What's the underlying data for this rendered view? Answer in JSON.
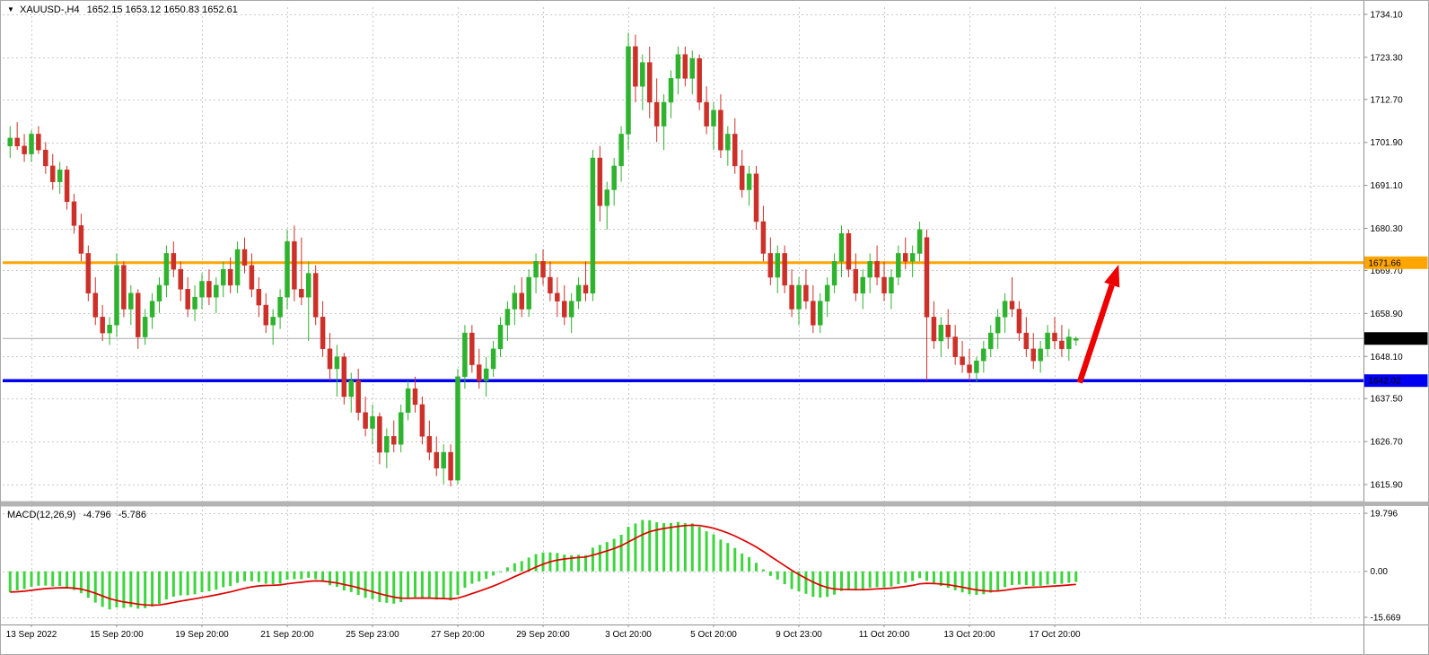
{
  "header": {
    "marker": "▼",
    "title": "XAUUSD-,H4",
    "ohlc": "1652.15 1653.12 1650.83 1652.61"
  },
  "macd_panel": {
    "label": "MACD(12,26,9)",
    "value_main": "-4.796",
    "value_signal": "-5.786"
  },
  "colors": {
    "bull": "#2eb32e",
    "bear": "#cc3029",
    "macd_bar": "#3cd63c",
    "macd_signal": "#e00000",
    "resistance": "#ffa500",
    "support": "#0000f0",
    "current_line": "#a8a8a8",
    "grid": "#c8c8c8",
    "axis_line": "#8f8f8f",
    "splitter": "#b4b4b4",
    "splitter_edge": "#8c8c8c",
    "arrow": "#ee0000",
    "tag_current_bg": "#000000",
    "tag_current_fg": "#ffffff",
    "tag_resistance_fg": "#000000",
    "tag_support_fg": "#ffffff",
    "window_border": "#a8a8a8",
    "background": "#ffffff"
  },
  "chart_data": {
    "type": "candlestick",
    "symbol": "XAUUSD-",
    "timeframe": "H4",
    "title": "XAUUSD-,H4 1652.15 1653.12 1650.83 1652.61",
    "last_ohlc": {
      "open": 1652.15,
      "high": 1653.12,
      "low": 1650.83,
      "close": 1652.61
    },
    "price_axis_ticks": [
      {
        "text": "1734.10",
        "value": 1734.1
      },
      {
        "text": "1723.30",
        "value": 1723.3
      },
      {
        "text": "1712.70",
        "value": 1712.7
      },
      {
        "text": "1701.90",
        "value": 1701.9
      },
      {
        "text": "1691.10",
        "value": 1691.1
      },
      {
        "text": "1680.30",
        "value": 1680.3
      },
      {
        "text": "1669.70",
        "value": 1669.7
      },
      {
        "text": "1658.90",
        "value": 1658.9
      },
      {
        "text": "1648.10",
        "value": 1648.1
      },
      {
        "text": "1637.50",
        "value": 1637.5
      },
      {
        "text": "1626.70",
        "value": 1626.7
      },
      {
        "text": "1615.90",
        "value": 1615.9
      }
    ],
    "time_axis_ticks": [
      {
        "text": "13 Sep 2022",
        "grid": 0
      },
      {
        "text": "15 Sep 20:00",
        "grid": 1
      },
      {
        "text": "19 Sep 20:00",
        "grid": 2
      },
      {
        "text": "21 Sep 20:00",
        "grid": 3
      },
      {
        "text": "25 Sep 23:00",
        "grid": 4
      },
      {
        "text": "27 Sep 20:00",
        "grid": 5
      },
      {
        "text": "29 Sep 20:00",
        "grid": 6
      },
      {
        "text": "3 Oct 20:00",
        "grid": 7
      },
      {
        "text": "5 Oct 20:00",
        "grid": 8
      },
      {
        "text": "9 Oct 23:00",
        "grid": 9
      },
      {
        "text": "11 Oct 20:00",
        "grid": 10
      },
      {
        "text": "13 Oct 20:00",
        "grid": 11
      },
      {
        "text": "17 Oct 20:00",
        "grid": 12
      }
    ],
    "grid_columns": 16,
    "candles_per_grid": 12,
    "levels": {
      "resistance": {
        "text": "1671.66",
        "value": 1671.66
      },
      "support": {
        "text": "1642.02",
        "value": 1642.02
      },
      "current": {
        "text": "1652.61",
        "value": 1652.61
      }
    },
    "candles": [
      [
        1701,
        1706,
        1698,
        1703
      ],
      [
        1703,
        1707,
        1700,
        1701
      ],
      [
        1701,
        1704,
        1697,
        1699
      ],
      [
        1699,
        1705,
        1697,
        1704
      ],
      [
        1704,
        1706,
        1699,
        1700
      ],
      [
        1700,
        1702,
        1694,
        1696
      ],
      [
        1696,
        1699,
        1690,
        1692
      ],
      [
        1692,
        1697,
        1689,
        1695
      ],
      [
        1695,
        1696,
        1685,
        1687
      ],
      [
        1687,
        1689,
        1679,
        1681
      ],
      [
        1681,
        1684,
        1672,
        1674
      ],
      [
        1674,
        1676,
        1662,
        1664
      ],
      [
        1664,
        1668,
        1656,
        1658
      ],
      [
        1658,
        1661,
        1652,
        1654
      ],
      [
        1654,
        1658,
        1651,
        1656
      ],
      [
        1656,
        1674,
        1653,
        1671
      ],
      [
        1671,
        1672,
        1658,
        1660
      ],
      [
        1660,
        1666,
        1656,
        1664
      ],
      [
        1664,
        1665,
        1650,
        1653
      ],
      [
        1653,
        1660,
        1651,
        1658
      ],
      [
        1658,
        1664,
        1655,
        1662
      ],
      [
        1662,
        1668,
        1659,
        1666
      ],
      [
        1666,
        1676,
        1663,
        1674
      ],
      [
        1674,
        1677,
        1668,
        1670
      ],
      [
        1670,
        1672,
        1662,
        1665
      ],
      [
        1665,
        1668,
        1658,
        1660
      ],
      [
        1660,
        1666,
        1657,
        1663
      ],
      [
        1663,
        1669,
        1660,
        1667
      ],
      [
        1667,
        1670,
        1661,
        1663
      ],
      [
        1663,
        1668,
        1659,
        1666
      ],
      [
        1666,
        1672,
        1663,
        1670
      ],
      [
        1670,
        1673,
        1664,
        1666
      ],
      [
        1666,
        1677,
        1664,
        1675
      ],
      [
        1675,
        1678,
        1669,
        1671
      ],
      [
        1671,
        1674,
        1663,
        1665
      ],
      [
        1665,
        1668,
        1658,
        1661
      ],
      [
        1661,
        1664,
        1654,
        1656
      ],
      [
        1656,
        1660,
        1651,
        1658
      ],
      [
        1658,
        1665,
        1655,
        1663
      ],
      [
        1663,
        1680,
        1660,
        1677
      ],
      [
        1677,
        1681,
        1662,
        1665
      ],
      [
        1665,
        1678,
        1661,
        1663
      ],
      [
        1663,
        1672,
        1652,
        1669
      ],
      [
        1669,
        1671,
        1656,
        1658
      ],
      [
        1658,
        1662,
        1648,
        1650
      ],
      [
        1650,
        1654,
        1642,
        1645
      ],
      [
        1645,
        1651,
        1638,
        1648
      ],
      [
        1648,
        1649,
        1636,
        1638
      ],
      [
        1638,
        1644,
        1634,
        1642
      ],
      [
        1642,
        1645,
        1632,
        1634
      ],
      [
        1634,
        1638,
        1628,
        1630
      ],
      [
        1630,
        1636,
        1626,
        1633
      ],
      [
        1633,
        1634,
        1621,
        1624
      ],
      [
        1624,
        1630,
        1620,
        1628
      ],
      [
        1628,
        1632,
        1624,
        1626
      ],
      [
        1626,
        1636,
        1624,
        1634
      ],
      [
        1634,
        1642,
        1632,
        1640
      ],
      [
        1640,
        1643,
        1634,
        1636
      ],
      [
        1636,
        1638,
        1626,
        1628
      ],
      [
        1628,
        1632,
        1622,
        1624
      ],
      [
        1624,
        1628,
        1618,
        1620
      ],
      [
        1620,
        1626,
        1616,
        1624
      ],
      [
        1624,
        1626,
        1615.4,
        1617
      ],
      [
        1617,
        1645,
        1616,
        1643
      ],
      [
        1643,
        1656,
        1640,
        1654
      ],
      [
        1654,
        1656,
        1644,
        1646
      ],
      [
        1646,
        1650,
        1640,
        1642
      ],
      [
        1642,
        1648,
        1638,
        1645
      ],
      [
        1645,
        1652,
        1643,
        1650
      ],
      [
        1650,
        1658,
        1648,
        1656
      ],
      [
        1656,
        1662,
        1652,
        1660
      ],
      [
        1660,
        1666,
        1656,
        1664
      ],
      [
        1664,
        1668,
        1658,
        1660
      ],
      [
        1660,
        1670,
        1658,
        1668
      ],
      [
        1668,
        1674,
        1664,
        1672
      ],
      [
        1672,
        1675,
        1666,
        1668
      ],
      [
        1668,
        1672,
        1662,
        1664
      ],
      [
        1664,
        1668,
        1658,
        1662
      ],
      [
        1662,
        1666,
        1656,
        1658
      ],
      [
        1658,
        1664,
        1654,
        1662
      ],
      [
        1662,
        1668,
        1660,
        1666
      ],
      [
        1666,
        1672,
        1662,
        1664
      ],
      [
        1664,
        1700,
        1662,
        1698
      ],
      [
        1698,
        1701,
        1682,
        1686
      ],
      [
        1686,
        1692,
        1680,
        1690
      ],
      [
        1690,
        1698,
        1686,
        1696
      ],
      [
        1696,
        1706,
        1692,
        1704
      ],
      [
        1704,
        1729.5,
        1700,
        1726
      ],
      [
        1726,
        1729,
        1712,
        1716
      ],
      [
        1716,
        1724,
        1710,
        1722
      ],
      [
        1722,
        1726,
        1708,
        1712
      ],
      [
        1712,
        1718,
        1702,
        1706
      ],
      [
        1706,
        1714,
        1700,
        1712
      ],
      [
        1712,
        1720,
        1708,
        1718
      ],
      [
        1718,
        1726,
        1714,
        1724
      ],
      [
        1724,
        1726,
        1716,
        1718
      ],
      [
        1718,
        1725,
        1714,
        1723
      ],
      [
        1723,
        1724,
        1710,
        1712
      ],
      [
        1712,
        1716,
        1704,
        1706
      ],
      [
        1706,
        1712,
        1700,
        1710
      ],
      [
        1710,
        1714,
        1698,
        1700
      ],
      [
        1700,
        1706,
        1696,
        1704
      ],
      [
        1704,
        1708,
        1694,
        1696
      ],
      [
        1696,
        1700,
        1688,
        1690
      ],
      [
        1690,
        1696,
        1686,
        1694
      ],
      [
        1694,
        1696,
        1680,
        1682
      ],
      [
        1682,
        1686,
        1672,
        1674
      ],
      [
        1674,
        1678,
        1666,
        1668
      ],
      [
        1668,
        1676,
        1664,
        1674
      ],
      [
        1674,
        1676,
        1664,
        1666
      ],
      [
        1666,
        1670,
        1658,
        1660
      ],
      [
        1660,
        1668,
        1656,
        1666
      ],
      [
        1666,
        1670,
        1660,
        1662
      ],
      [
        1662,
        1666,
        1654,
        1656
      ],
      [
        1656,
        1664,
        1654,
        1662
      ],
      [
        1662,
        1668,
        1658,
        1666
      ],
      [
        1666,
        1674,
        1664,
        1672
      ],
      [
        1672,
        1681,
        1668,
        1679
      ],
      [
        1679,
        1680,
        1668,
        1670
      ],
      [
        1670,
        1674,
        1662,
        1664
      ],
      [
        1664,
        1670,
        1660,
        1668
      ],
      [
        1668,
        1674,
        1664,
        1672
      ],
      [
        1672,
        1676,
        1666,
        1668
      ],
      [
        1668,
        1672,
        1662,
        1664
      ],
      [
        1664,
        1670,
        1660,
        1668
      ],
      [
        1668,
        1676,
        1666,
        1674
      ],
      [
        1674,
        1678,
        1670,
        1672
      ],
      [
        1672,
        1676,
        1668,
        1674
      ],
      [
        1674,
        1682,
        1672,
        1680
      ],
      [
        1678,
        1680,
        1642,
        1658
      ],
      [
        1658,
        1662,
        1650,
        1652
      ],
      [
        1652,
        1658,
        1648,
        1656
      ],
      [
        1656,
        1660,
        1650,
        1653
      ],
      [
        1653,
        1656,
        1646,
        1648
      ],
      [
        1648,
        1652,
        1644,
        1646
      ],
      [
        1646,
        1650,
        1642,
        1644
      ],
      [
        1644,
        1648,
        1641.5,
        1647
      ],
      [
        1647,
        1652,
        1644,
        1650
      ],
      [
        1650,
        1656,
        1648,
        1654
      ],
      [
        1654,
        1660,
        1650,
        1658
      ],
      [
        1658,
        1664,
        1654,
        1662
      ],
      [
        1662,
        1668,
        1658,
        1660
      ],
      [
        1660,
        1662,
        1652,
        1654
      ],
      [
        1654,
        1658,
        1648,
        1650
      ],
      [
        1650,
        1654,
        1645,
        1647
      ],
      [
        1647,
        1652,
        1644,
        1650
      ],
      [
        1650,
        1656,
        1648,
        1654
      ],
      [
        1654,
        1658,
        1650,
        1652
      ],
      [
        1652,
        1656,
        1648,
        1650
      ],
      [
        1650,
        1655,
        1647,
        1653
      ],
      [
        1652.15,
        1653.12,
        1650.83,
        1652.61
      ]
    ],
    "macd": {
      "type": "bar+line",
      "label": "MACD(12,26,9)",
      "params": [
        12,
        26,
        9
      ],
      "axis_ticks": [
        {
          "text": "19.796",
          "value": 19.796
        },
        {
          "text": "0.00",
          "value": 0
        },
        {
          "text": "-15.669",
          "value": -15.669
        }
      ],
      "max": 19.796,
      "min": -15.669,
      "current_main": -4.796,
      "current_signal": -5.786
    },
    "annotation_arrow": {
      "from_index": 150.5,
      "from_price": 1641.5,
      "to_index": 156,
      "to_price": 1671.2
    }
  }
}
